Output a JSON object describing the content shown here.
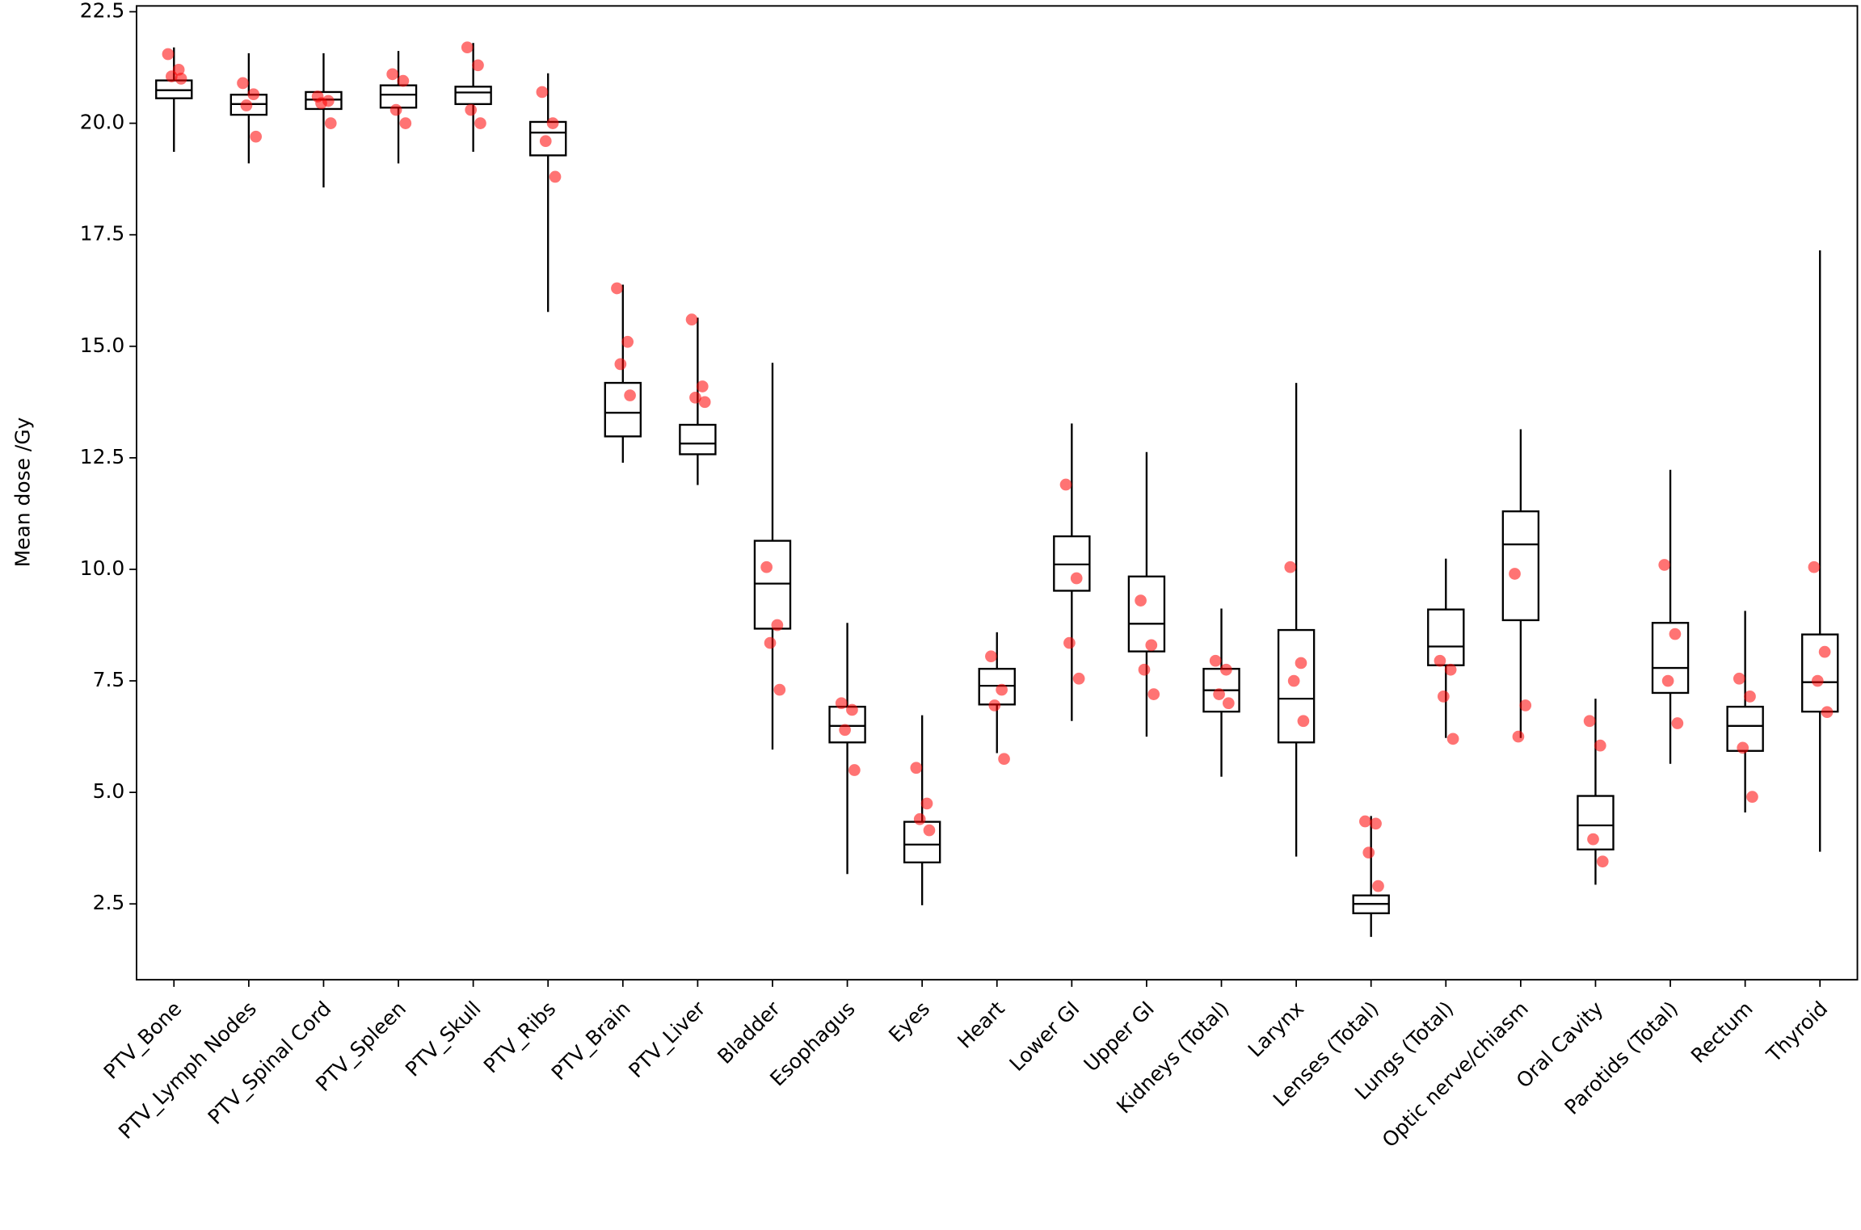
{
  "chart_data": {
    "type": "box",
    "y_label": "Mean dose /Gy",
    "ylim": [
      0.8,
      22.63
    ],
    "yticks": [
      2.5,
      {
        "value": 5,
        "label": "5.0"
      },
      7.5,
      {
        "value": 10,
        "label": "10.0"
      },
      12.5,
      {
        "value": 15,
        "label": "15.0"
      },
      17.5,
      {
        "value": 20,
        "label": "20.0"
      },
      22.5
    ],
    "box_color": "#000000",
    "point_color": "#ff0000",
    "categories": [
      "PTV_Bone",
      "PTV_Lymph Nodes",
      "PTV_Spinal Cord",
      "PTV_Spleen",
      "PTV_Skull",
      "PTV_Ribs",
      "PTV_Brain",
      "PTV_Liver",
      "Bladder",
      "Esophagus",
      "Eyes",
      "Heart",
      "Lower GI",
      "Upper GI",
      "Kidneys (Total)",
      "Larynx",
      "Lenses (Total)",
      "Lungs (Total)",
      "Optic nerve/chiasm",
      "Oral Cavity",
      "Parotids (Total)",
      "Rectum",
      "Thyroid"
    ],
    "boxes": [
      {
        "whisker_low": 19.36,
        "q1": 20.56,
        "median": 20.74,
        "q3": 20.96,
        "whisker_high": 21.7,
        "points": [
          21.55,
          21.2,
          21.05,
          21.0
        ]
      },
      {
        "whisker_low": 19.1,
        "q1": 20.19,
        "median": 20.43,
        "q3": 20.64,
        "whisker_high": 21.57,
        "points": [
          20.9,
          20.65,
          20.4,
          19.7
        ]
      },
      {
        "whisker_low": 18.56,
        "q1": 20.32,
        "median": 20.53,
        "q3": 20.7,
        "whisker_high": 21.57,
        "points": [
          20.6,
          20.5,
          20.45,
          20.0
        ]
      },
      {
        "whisker_low": 19.1,
        "q1": 20.35,
        "median": 20.64,
        "q3": 20.85,
        "whisker_high": 21.62,
        "points": [
          21.1,
          20.95,
          20.3,
          20.0
        ]
      },
      {
        "whisker_low": 19.36,
        "q1": 20.43,
        "median": 20.69,
        "q3": 20.82,
        "whisker_high": 21.8,
        "points": [
          21.7,
          21.3,
          20.3,
          20.0
        ]
      },
      {
        "whisker_low": 15.77,
        "q1": 19.28,
        "median": 19.79,
        "q3": 20.03,
        "whisker_high": 21.12,
        "points": [
          20.7,
          20.0,
          19.6,
          18.8
        ]
      },
      {
        "whisker_low": 12.39,
        "q1": 12.98,
        "median": 13.51,
        "q3": 14.18,
        "whisker_high": 16.38,
        "points": [
          16.3,
          15.1,
          14.6,
          13.9
        ]
      },
      {
        "whisker_low": 11.89,
        "q1": 12.58,
        "median": 12.82,
        "q3": 13.24,
        "whisker_high": 15.64,
        "points": [
          15.6,
          14.1,
          13.85,
          13.75
        ]
      },
      {
        "whisker_low": 5.96,
        "q1": 8.67,
        "median": 9.68,
        "q3": 10.64,
        "whisker_high": 14.63,
        "points": [
          10.05,
          8.75,
          8.35,
          7.3
        ]
      },
      {
        "whisker_low": 3.17,
        "q1": 6.12,
        "median": 6.49,
        "q3": 6.92,
        "whisker_high": 8.8,
        "points": [
          7.0,
          6.85,
          6.4,
          5.5
        ]
      },
      {
        "whisker_low": 2.47,
        "q1": 3.43,
        "median": 3.83,
        "q3": 4.34,
        "whisker_high": 6.73,
        "points": [
          5.55,
          4.75,
          4.4,
          4.15
        ]
      },
      {
        "whisker_low": 5.88,
        "q1": 6.97,
        "median": 7.39,
        "q3": 7.77,
        "whisker_high": 8.59,
        "points": [
          8.05,
          7.3,
          6.95,
          5.75
        ]
      },
      {
        "whisker_low": 6.6,
        "q1": 9.52,
        "median": 10.11,
        "q3": 10.74,
        "whisker_high": 13.27,
        "points": [
          11.9,
          9.8,
          8.35,
          7.55
        ]
      },
      {
        "whisker_low": 6.25,
        "q1": 8.16,
        "median": 8.78,
        "q3": 9.84,
        "whisker_high": 12.63,
        "points": [
          9.3,
          8.3,
          7.75,
          7.2
        ]
      },
      {
        "whisker_low": 5.35,
        "q1": 6.81,
        "median": 7.29,
        "q3": 7.77,
        "whisker_high": 9.12,
        "points": [
          7.95,
          7.75,
          7.2,
          7.0
        ]
      },
      {
        "whisker_low": 3.56,
        "q1": 6.12,
        "median": 7.1,
        "q3": 8.64,
        "whisker_high": 14.18,
        "points": [
          10.05,
          7.9,
          7.5,
          6.6
        ]
      },
      {
        "whisker_low": 1.76,
        "q1": 2.29,
        "median": 2.5,
        "q3": 2.69,
        "whisker_high": 4.47,
        "points": [
          4.35,
          4.3,
          3.65,
          2.9
        ]
      },
      {
        "whisker_low": 6.22,
        "q1": 7.85,
        "median": 8.27,
        "q3": 9.1,
        "whisker_high": 10.24,
        "points": [
          7.95,
          7.75,
          7.15,
          6.2
        ]
      },
      {
        "whisker_low": 6.22,
        "q1": 8.86,
        "median": 10.56,
        "q3": 11.3,
        "whisker_high": 13.14,
        "points": [
          9.9,
          6.95,
          6.25
        ]
      },
      {
        "whisker_low": 2.93,
        "q1": 3.72,
        "median": 4.26,
        "q3": 4.92,
        "whisker_high": 7.1,
        "points": [
          6.6,
          6.05,
          3.95,
          3.45
        ]
      },
      {
        "whisker_low": 5.64,
        "q1": 7.23,
        "median": 7.79,
        "q3": 8.8,
        "whisker_high": 12.23,
        "points": [
          10.1,
          8.55,
          7.5,
          6.55
        ]
      },
      {
        "whisker_low": 4.55,
        "q1": 5.93,
        "median": 6.49,
        "q3": 6.92,
        "whisker_high": 9.07,
        "points": [
          7.55,
          7.15,
          6.0,
          4.9
        ]
      },
      {
        "whisker_low": 3.67,
        "q1": 6.81,
        "median": 7.47,
        "q3": 8.54,
        "whisker_high": 17.15,
        "points": [
          10.05,
          8.15,
          7.5,
          6.8
        ]
      }
    ]
  }
}
